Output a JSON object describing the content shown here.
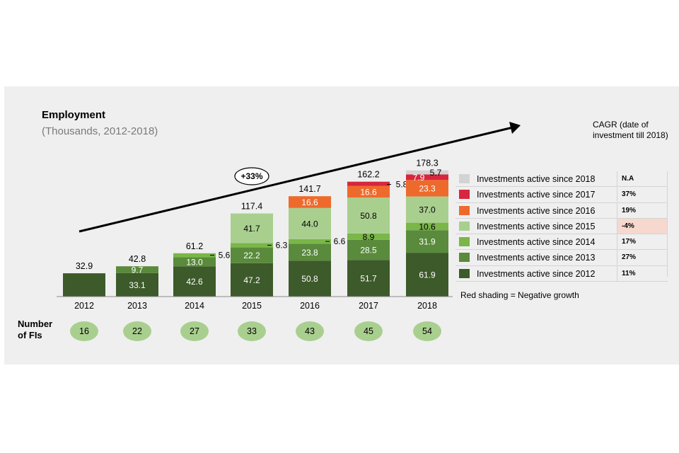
{
  "chart_data": {
    "type": "bar",
    "stacked": true,
    "title": "Employment",
    "subtitle": "(Thousands, 2012-2018)",
    "categories": [
      "2012",
      "2013",
      "2014",
      "2015",
      "2016",
      "2017",
      "2018"
    ],
    "series": [
      {
        "name": "Investments active since 2012",
        "color": "#3d5a2a",
        "values": [
          32.9,
          33.1,
          42.6,
          47.2,
          50.8,
          51.7,
          61.9
        ],
        "labels": [
          "",
          "33.1",
          "42.6",
          "47.2",
          "50.8",
          "51.7",
          "61.9"
        ]
      },
      {
        "name": "Investments active since 2013",
        "color": "#5a8a3c",
        "values": [
          0,
          9.7,
          13.0,
          22.2,
          23.8,
          28.5,
          31.9
        ],
        "labels": [
          "",
          "9.7",
          "13.0",
          "22.2",
          "23.8",
          "28.5",
          "31.9"
        ]
      },
      {
        "name": "Investments active since 2014",
        "color": "#7ab648",
        "values": [
          0,
          0,
          5.6,
          6.3,
          6.6,
          8.9,
          10.6
        ],
        "labels": [
          "",
          "",
          "5.6",
          "6.3",
          "6.6",
          "8.9",
          "10.6"
        ]
      },
      {
        "name": "Investments active since 2015",
        "color": "#a9cf8f",
        "values": [
          0,
          0,
          0,
          41.7,
          44.0,
          50.8,
          37.0
        ],
        "labels": [
          "",
          "",
          "",
          "41.7",
          "44.0",
          "50.8",
          "37.0"
        ]
      },
      {
        "name": "Investments active since 2016",
        "color": "#ee6a2c",
        "values": [
          0,
          0,
          0,
          0,
          16.6,
          16.6,
          23.3
        ],
        "labels": [
          "",
          "",
          "",
          "",
          "16.6",
          "16.6",
          "23.3"
        ]
      },
      {
        "name": "Investments active since 2017",
        "color": "#d7263d",
        "values": [
          0,
          0,
          0,
          0,
          0,
          5.8,
          7.9
        ],
        "labels": [
          "",
          "",
          "",
          "",
          "",
          "5.8",
          "7.9"
        ]
      },
      {
        "name": "Investments active since 2018",
        "color": "#d3d3d3",
        "values": [
          0,
          0,
          0,
          0,
          0,
          0,
          5.7
        ],
        "labels": [
          "",
          "",
          "",
          "",
          "",
          "",
          "5.7"
        ]
      }
    ],
    "totals": [
      "32.9",
      "42.8",
      "61.2",
      "117.4",
      "141.7",
      "162.2",
      "178.3"
    ],
    "ylim": [
      0,
      180
    ],
    "annotation": "+33%",
    "number_of_fis": [
      "16",
      "22",
      "27",
      "33",
      "43",
      "45",
      "54"
    ]
  },
  "number_of_fis_label_line1": "Number",
  "number_of_fis_label_line2": "of FIs",
  "cagr_header": "CAGR (date of investment till 2018)",
  "legend": [
    {
      "label": "Investments active since 2018",
      "color": "#d3d3d3",
      "cagr": "N.A",
      "negative": false
    },
    {
      "label": "Investments active since 2017",
      "color": "#d7263d",
      "cagr": "37%",
      "negative": false
    },
    {
      "label": "Investments active since 2016",
      "color": "#ee6a2c",
      "cagr": "19%",
      "negative": false
    },
    {
      "label": "Investments active since 2015",
      "color": "#a9cf8f",
      "cagr": "-4%",
      "negative": true
    },
    {
      "label": "Investments active since 2014",
      "color": "#7ab648",
      "cagr": "17%",
      "negative": false
    },
    {
      "label": "Investments active since 2013",
      "color": "#5a8a3c",
      "cagr": "27%",
      "negative": false
    },
    {
      "label": "Investments active since 2012",
      "color": "#3d5a2a",
      "cagr": "11%",
      "negative": false
    }
  ],
  "footnote": "Red shading = Negative growth",
  "colors": {
    "panel": "#efefef",
    "fi_bubble": "#a9cf8f"
  }
}
